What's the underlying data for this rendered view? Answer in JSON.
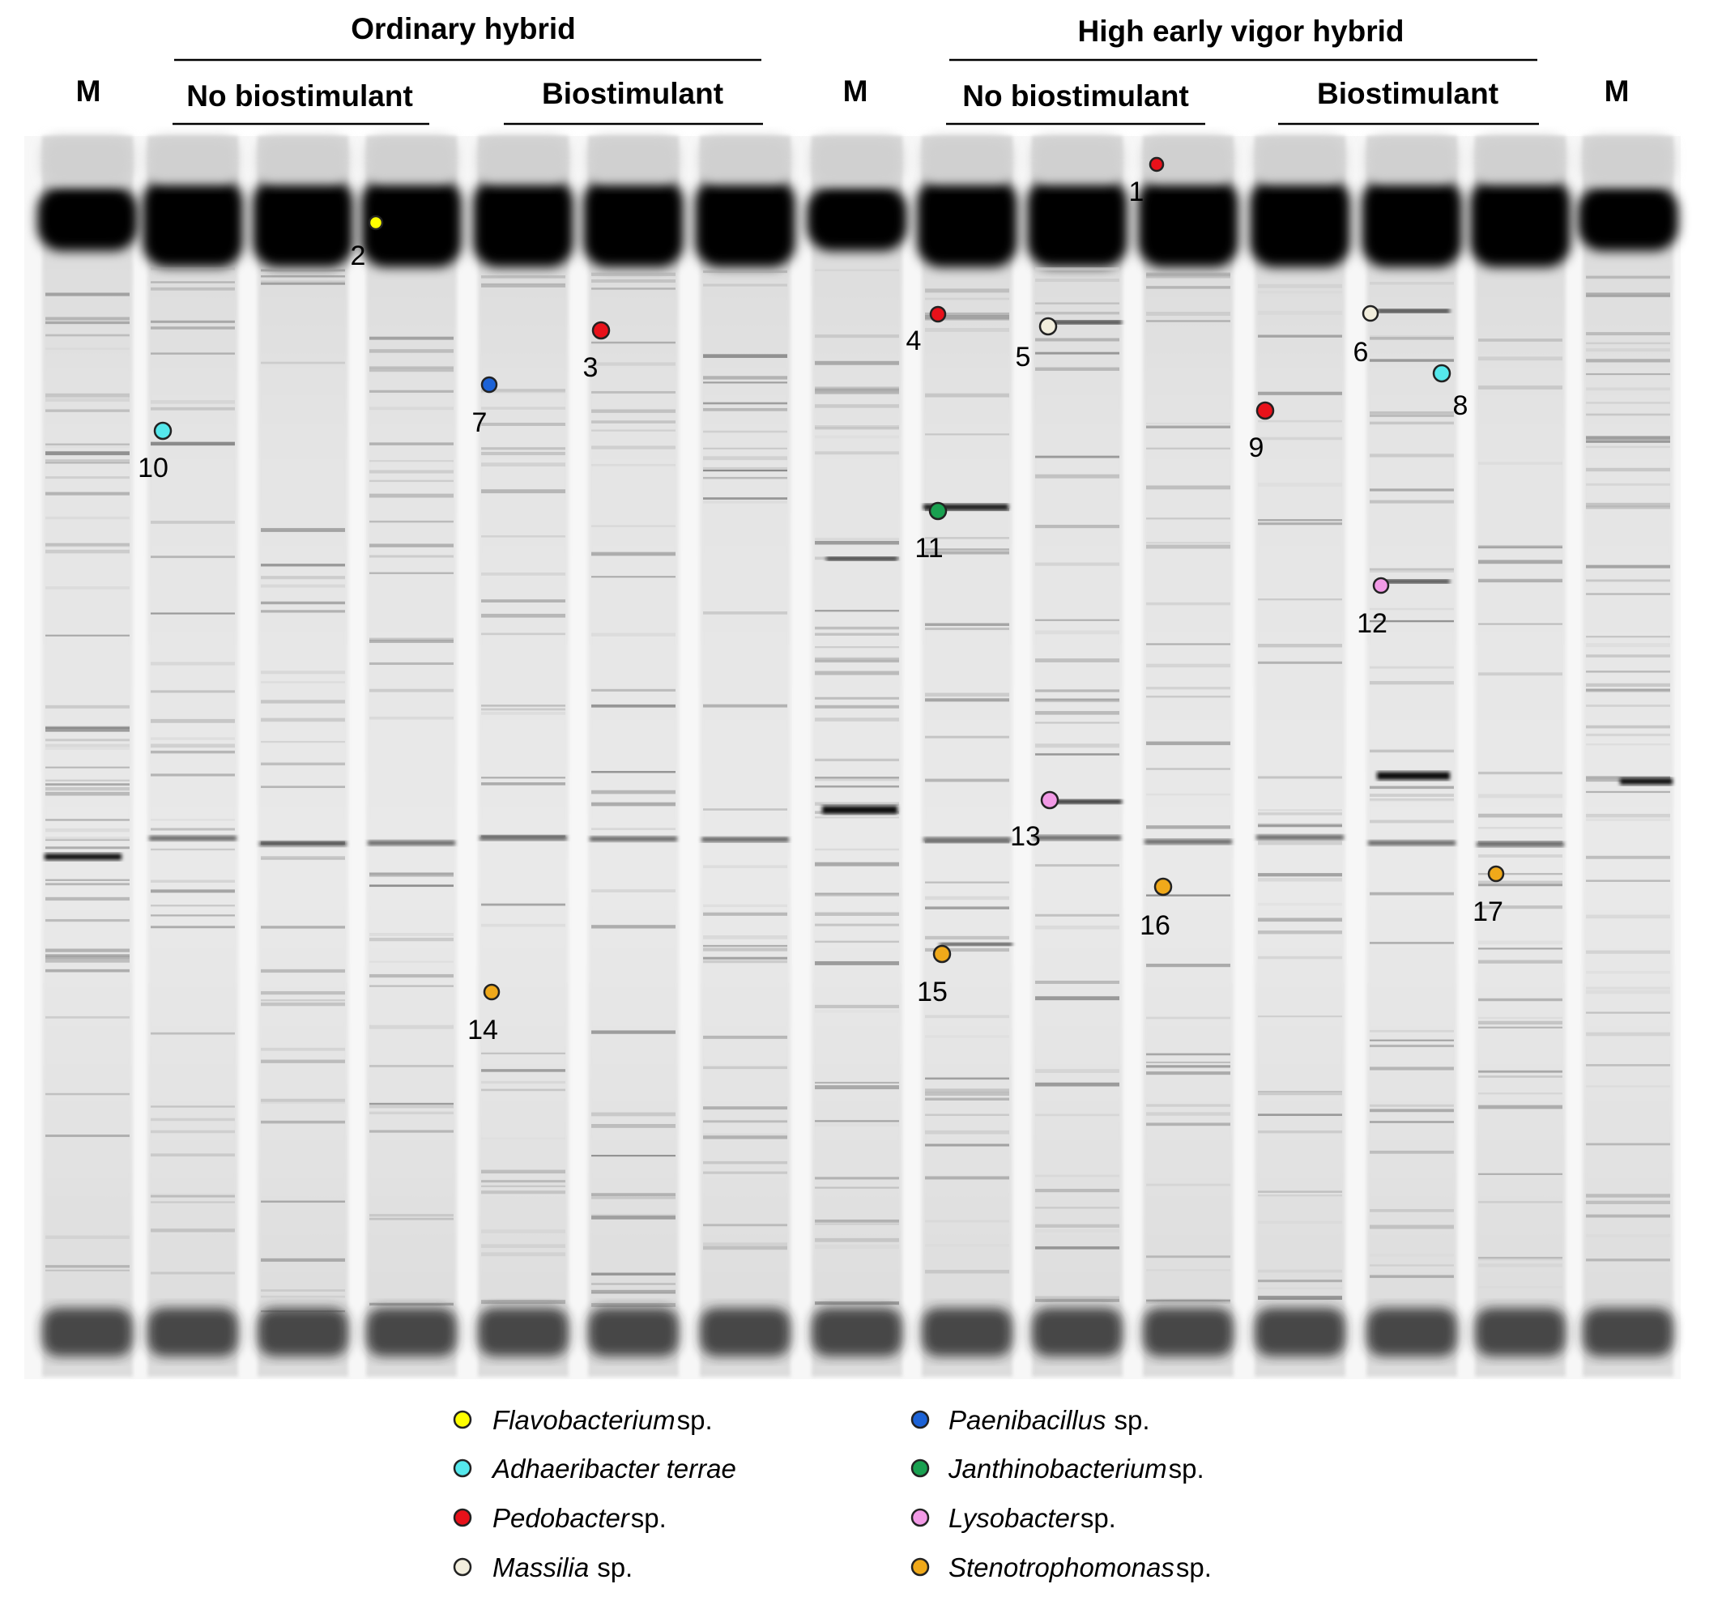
{
  "groups": {
    "ordinary": "Ordinary hybrid",
    "vigor": "High early vigor hybrid"
  },
  "treatments": {
    "ord_nobio": "No biostimulant",
    "ord_bio": "Biostimulant",
    "vig_nobio": "No biostimulant",
    "vig_bio": "Biostimulant"
  },
  "markers": {
    "m1": "M",
    "m2": "M",
    "m3": "M"
  },
  "band_labels": {
    "b1": "1",
    "b2": "2",
    "b3": "3",
    "b4": "4",
    "b5": "5",
    "b6": "6",
    "b7": "7",
    "b8": "8",
    "b9": "9",
    "b10": "10",
    "b11": "11",
    "b12": "12",
    "b13": "13",
    "b14": "14",
    "b15": "15",
    "b16": "16",
    "b17": "17"
  },
  "legend": [
    {
      "name": "Flavobacterium",
      "suffix": "sp.",
      "color": "#ffff00"
    },
    {
      "name": "Adhaeribacter terrae",
      "suffix": "",
      "color": "#55e8ec"
    },
    {
      "name": "Pedobacter",
      "suffix": "sp.",
      "color": "#e8111a"
    },
    {
      "name": "Massilia",
      "suffix": "sp.",
      "color": "#f2eedd"
    },
    {
      "name": "Paenibacillus",
      "suffix": "sp.",
      "color": "#1c62d6"
    },
    {
      "name": "Janthinobacterium",
      "suffix": "sp.",
      "color": "#19a050"
    },
    {
      "name": "Lysobacter",
      "suffix": "sp.",
      "color": "#f29ae6"
    },
    {
      "name": "Stenotrophomonas",
      "suffix": "sp.",
      "color": "#f0a91a"
    }
  ]
}
